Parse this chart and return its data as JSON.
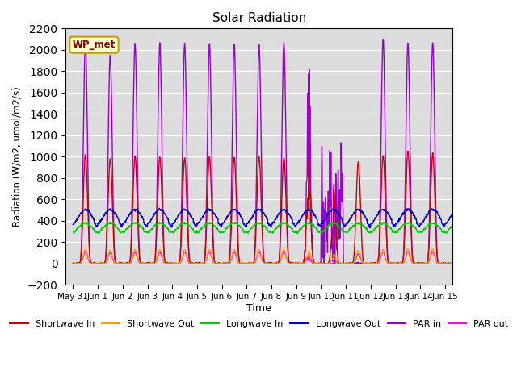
{
  "title": "Solar Radiation",
  "xlabel": "Time",
  "ylabel": "Radiation (W/m2, umol/m2/s)",
  "ylim": [
    -200,
    2200
  ],
  "yticks": [
    -200,
    0,
    200,
    400,
    600,
    800,
    1000,
    1200,
    1400,
    1600,
    1800,
    2000,
    2200
  ],
  "bg_color": "#dcdcdc",
  "annotation_text": "WP_met",
  "annotation_bg": "#ffffcc",
  "annotation_border": "#cc9900",
  "series": {
    "shortwave_in": {
      "color": "#cc0000",
      "label": "Shortwave In",
      "lw": 1.0
    },
    "shortwave_out": {
      "color": "#ff9900",
      "label": "Shortwave Out",
      "lw": 1.0
    },
    "longwave_in": {
      "color": "#00cc00",
      "label": "Longwave In",
      "lw": 1.0
    },
    "longwave_out": {
      "color": "#0000cc",
      "label": "Longwave Out",
      "lw": 1.0
    },
    "par_in": {
      "color": "#9900cc",
      "label": "PAR in",
      "lw": 1.0
    },
    "par_out": {
      "color": "#ff00ff",
      "label": "PAR out",
      "lw": 1.0
    }
  }
}
